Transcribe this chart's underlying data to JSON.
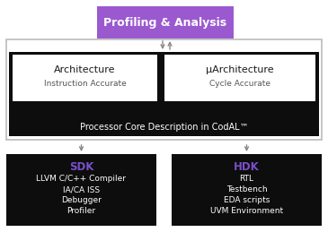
{
  "bg_color": "#ffffff",
  "black_bg": "#0d0d0d",
  "white_box_color": "#ffffff",
  "purple_box_color": "#9b59d0",
  "purple_text_color": "#7a4fc9",
  "white_text_color": "#ffffff",
  "black_text_color": "#1a1a1a",
  "arrow_color": "#888888",
  "border_color": "#bbbbbb",
  "profiling_label": "Profiling & Analysis",
  "arch_label": "Architecture",
  "arch_sub": "Instruction Accurate",
  "uarch_label": "μArchitecture",
  "uarch_sub": "Cycle Accurate",
  "codal_label": "Processor Core Description in CodAL™",
  "sdk_label": "SDK",
  "sdk_items": [
    "LLVM C/C++ Compiler",
    "IA/CA ISS",
    "Debugger",
    "Profiler"
  ],
  "hdk_label": "HDK",
  "hdk_items": [
    "RTL",
    "Testbench",
    "EDA scripts",
    "UVM Environment"
  ]
}
